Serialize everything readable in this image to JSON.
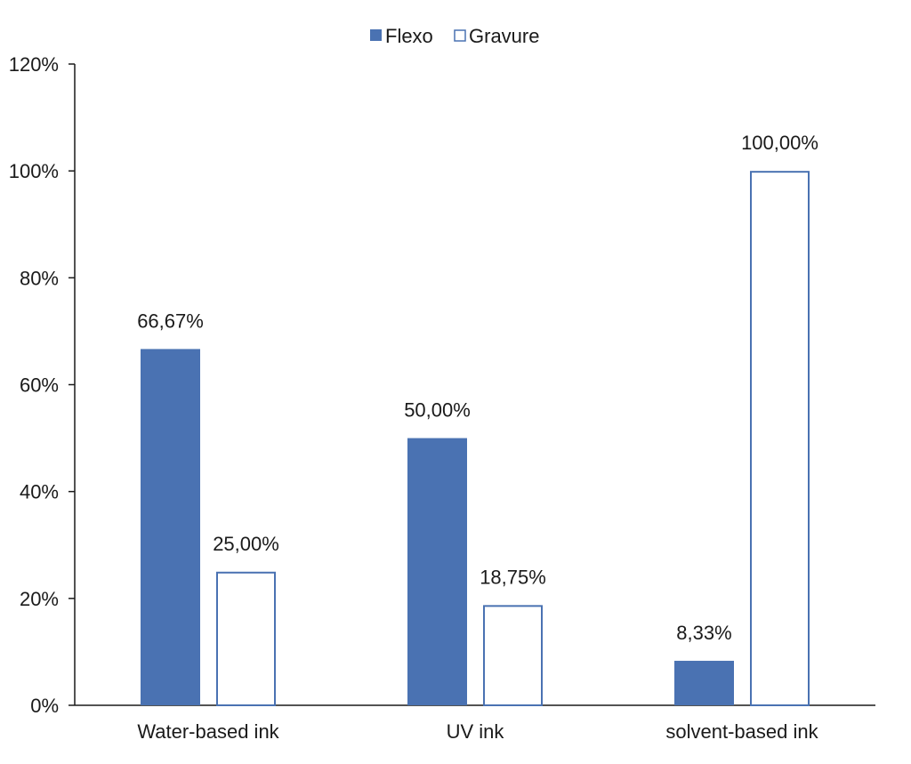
{
  "chart_data": {
    "type": "bar",
    "categories": [
      "Water-based ink",
      "UV ink",
      "solvent-based ink"
    ],
    "series": [
      {
        "name": "Flexo",
        "values": [
          66.67,
          50.0,
          8.33
        ],
        "labels": [
          "66,67%",
          "50,00%",
          "8,33%"
        ],
        "color": "#4a72b2",
        "filled": true
      },
      {
        "name": "Gravure",
        "values": [
          25.0,
          18.75,
          100.0
        ],
        "labels": [
          "25,00%",
          "18,75%",
          "100,00%"
        ],
        "color": "#4a72b2",
        "filled": false
      }
    ],
    "ylim": [
      0,
      120
    ],
    "yticks": [
      0,
      20,
      40,
      60,
      80,
      100,
      120
    ],
    "ytick_labels": [
      "0%",
      "20%",
      "40%",
      "60%",
      "80%",
      "100%",
      "120%"
    ],
    "grid": false,
    "legend_position": "top-center"
  }
}
